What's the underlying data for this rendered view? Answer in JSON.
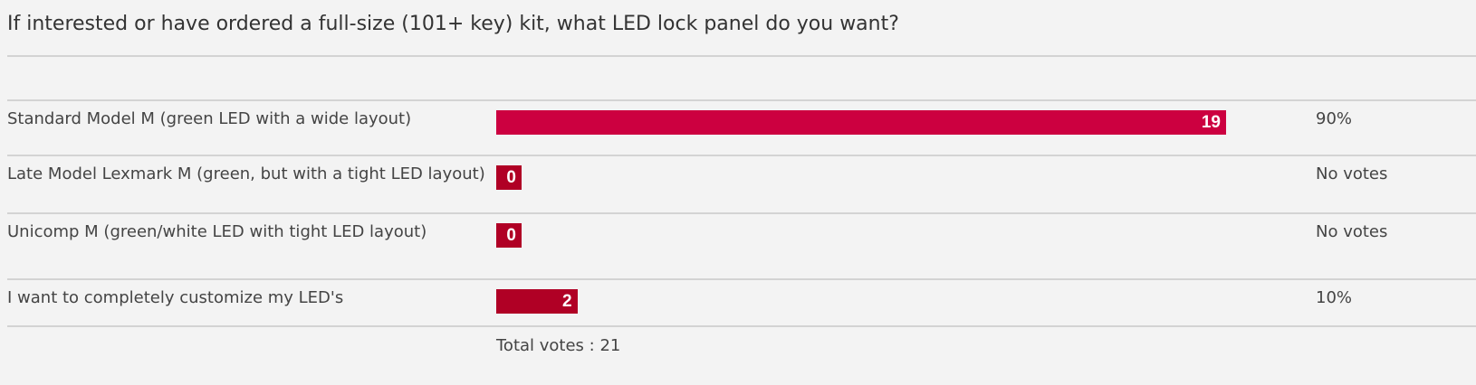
{
  "poll": {
    "question": "If interested or have ordered a full-size (101+ key) kit, what LED lock panel do you want?",
    "options": [
      {
        "label": "Standard Model M (green LED with a wide layout)",
        "votes": "19",
        "percent_text": "90%",
        "percent": 90,
        "color": "#cc0040"
      },
      {
        "label": "Late Model Lexmark M (green, but with a tight LED layout)",
        "votes": "0",
        "percent_text": "No votes",
        "percent": 0,
        "color": "#b00025"
      },
      {
        "label": "Unicomp M (green/white LED with tight LED layout)",
        "votes": "0",
        "percent_text": "No votes",
        "percent": 0,
        "color": "#b00025"
      },
      {
        "label": "I want to completely customize my LED's",
        "votes": "2",
        "percent_text": "10%",
        "percent": 10,
        "color": "#b00025"
      }
    ],
    "total_votes": "Total votes : 21"
  }
}
